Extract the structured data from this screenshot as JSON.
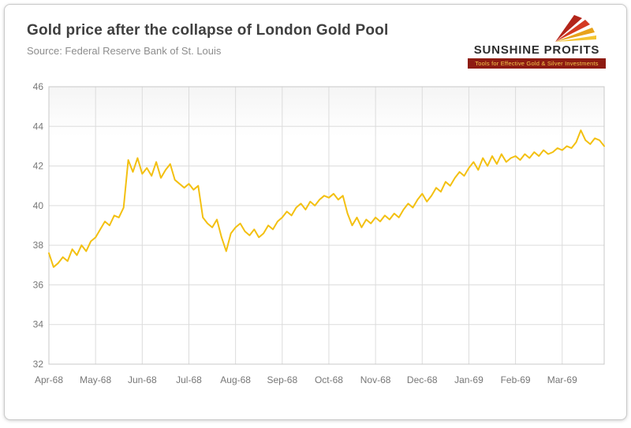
{
  "header": {
    "title": "Gold price after the collapse of London Gold Pool",
    "source": "Source: Federal Reserve Bank of St. Louis"
  },
  "logo": {
    "name": "SUNSHINE PROFITS",
    "tagline": "Tools for Effective Gold & Silver Investments"
  },
  "colors": {
    "line": "#F3C011",
    "grid": "#dcdcdc",
    "plot_border": "#c8c8c8",
    "axis_text": "#777777",
    "title_text": "#3f3f3f",
    "source_text": "#8d8d8d",
    "logo_bar": "#8e1b12",
    "logo_bar_text": "#f5c84c"
  },
  "chart_data": {
    "type": "line",
    "title": "Gold price after the collapse of London Gold Pool",
    "xlabel": "",
    "ylabel": "",
    "ylim": [
      32,
      46
    ],
    "y_tick_step": 2,
    "grid": true,
    "legend": "none",
    "line_color": "#F3C011",
    "x_tick_labels": [
      "Apr-68",
      "May-68",
      "Jun-68",
      "Jul-68",
      "Aug-68",
      "Sep-68",
      "Oct-68",
      "Nov-68",
      "Dec-68",
      "Jan-69",
      "Feb-69",
      "Mar-69"
    ],
    "points_per_month": 10,
    "values": [
      37.6,
      36.9,
      37.1,
      37.4,
      37.2,
      37.8,
      37.5,
      38.0,
      37.7,
      38.2,
      38.4,
      38.8,
      39.2,
      39.0,
      39.5,
      39.4,
      39.9,
      42.3,
      41.7,
      42.4,
      41.6,
      41.9,
      41.5,
      42.2,
      41.4,
      41.8,
      42.1,
      41.3,
      41.1,
      40.9,
      41.1,
      40.8,
      41.0,
      39.4,
      39.1,
      38.9,
      39.3,
      38.4,
      37.7,
      38.6,
      38.9,
      39.1,
      38.7,
      38.5,
      38.8,
      38.4,
      38.6,
      39.0,
      38.8,
      39.2,
      39.4,
      39.7,
      39.5,
      39.9,
      40.1,
      39.8,
      40.2,
      40.0,
      40.3,
      40.5,
      40.4,
      40.6,
      40.3,
      40.5,
      39.6,
      39.0,
      39.4,
      38.9,
      39.3,
      39.1,
      39.4,
      39.2,
      39.5,
      39.3,
      39.6,
      39.4,
      39.8,
      40.1,
      39.9,
      40.3,
      40.6,
      40.2,
      40.5,
      40.9,
      40.7,
      41.2,
      41.0,
      41.4,
      41.7,
      41.5,
      41.9,
      42.2,
      41.8,
      42.4,
      42.0,
      42.5,
      42.1,
      42.6,
      42.2,
      42.4,
      42.5,
      42.3,
      42.6,
      42.4,
      42.7,
      42.5,
      42.8,
      42.6,
      42.7,
      42.9,
      42.8,
      43.0,
      42.9,
      43.2,
      43.8,
      43.3,
      43.1,
      43.4,
      43.3,
      43.0
    ]
  }
}
